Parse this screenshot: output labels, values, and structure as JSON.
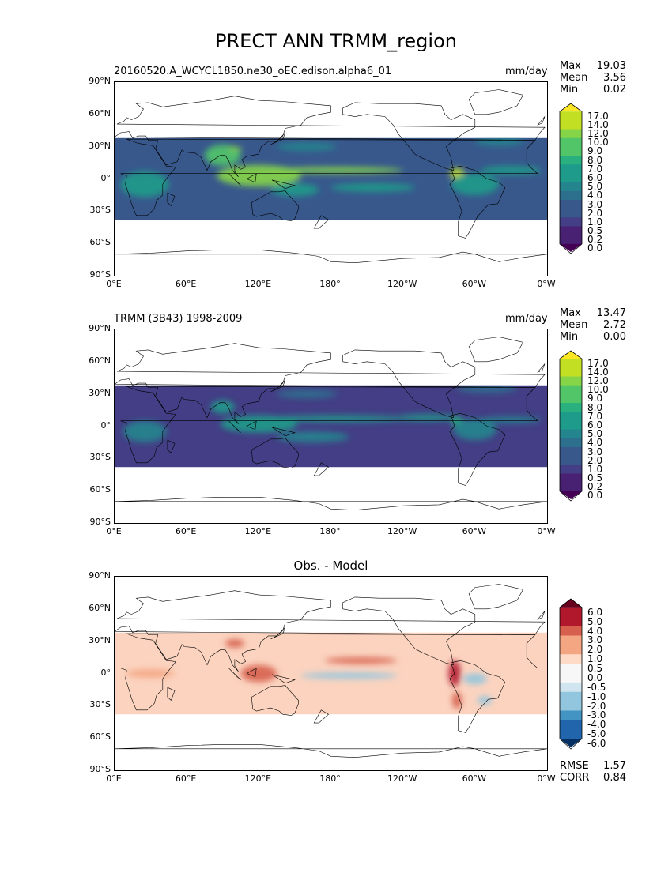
{
  "page_title": "PRECT ANN TRMM_region",
  "lat_labels": [
    "90°N",
    "60°N",
    "30°N",
    "0°",
    "30°S",
    "60°S",
    "90°S"
  ],
  "lon_labels": [
    "0°E",
    "60°E",
    "120°E",
    "180°",
    "120°W",
    "60°W",
    "0°W"
  ],
  "panels": [
    {
      "left_title": "20160520.A_WCYCL1850.ne30_oEC.edison.alpha6_01",
      "units": "mm/day",
      "center_title": "",
      "stats": [
        {
          "label": "Max",
          "value": "19.03"
        },
        {
          "label": "Mean",
          "value": "3.56"
        },
        {
          "label": "Min",
          "value": "0.02"
        }
      ],
      "colorbar_ticks": [
        "17.0",
        "14.0",
        "12.0",
        "10.0",
        "9.0",
        "8.0",
        "7.0",
        "6.0",
        "5.0",
        "4.0",
        "3.0",
        "2.0",
        "1.0",
        "0.5",
        "0.2",
        "0.0"
      ],
      "colormap": "viridis"
    },
    {
      "left_title": "TRMM (3B43) 1998-2009",
      "units": "mm/day",
      "center_title": "",
      "stats": [
        {
          "label": "Max",
          "value": "13.47"
        },
        {
          "label": "Mean",
          "value": "2.72"
        },
        {
          "label": "Min",
          "value": "0.00"
        }
      ],
      "colorbar_ticks": [
        "17.0",
        "14.0",
        "12.0",
        "10.0",
        "9.0",
        "8.0",
        "7.0",
        "6.0",
        "5.0",
        "4.0",
        "3.0",
        "2.0",
        "1.0",
        "0.5",
        "0.2",
        "0.0"
      ],
      "colormap": "viridis"
    },
    {
      "left_title": "",
      "units": "",
      "center_title": "Obs. - Model",
      "stats": [
        {
          "label": "RMSE",
          "value": "1.57"
        },
        {
          "label": "CORR",
          "value": "0.84"
        }
      ],
      "colorbar_ticks": [
        "6.0",
        "5.0",
        "4.0",
        "3.0",
        "2.0",
        "1.0",
        "0.5",
        "0.0",
        "-0.5",
        "-1.0",
        "-2.0",
        "-3.0",
        "-4.0",
        "-5.0",
        "-6.0"
      ],
      "colormap": "rdbu"
    }
  ],
  "colors": {
    "viridis": [
      "#440154",
      "#482173",
      "#433e85",
      "#38588c",
      "#2d708e",
      "#25858e",
      "#1e9b8a",
      "#2ab07f",
      "#52c569",
      "#86d549",
      "#c2df23",
      "#fde725"
    ],
    "rdbu": [
      "#053061",
      "#2166ac",
      "#4393c3",
      "#92c5de",
      "#d1e5f0",
      "#f7f7f7",
      "#fddbc7",
      "#f4a582",
      "#d6604d",
      "#b2182b",
      "#67001f"
    ]
  }
}
